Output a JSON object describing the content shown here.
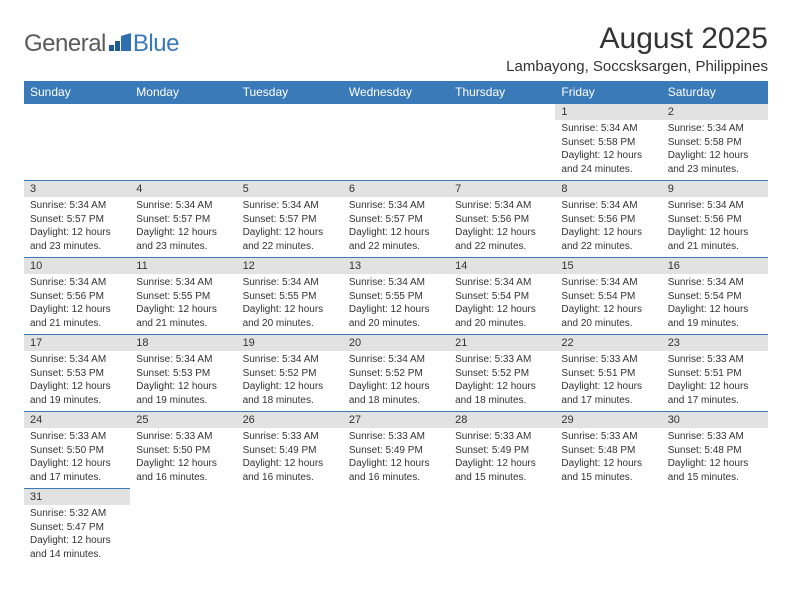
{
  "logo": {
    "general": "General",
    "blue": "Blue"
  },
  "title": "August 2025",
  "location": "Lambayong, Soccsksargen, Philippines",
  "colors": {
    "header_bg": "#3a7ab8",
    "header_text": "#ffffff",
    "daynum_bg": "#e2e2e2",
    "border": "#3a7ab8",
    "text": "#333333",
    "logo_gray": "#5a5a5a",
    "logo_blue": "#3a7ab8"
  },
  "days_of_week": [
    "Sunday",
    "Monday",
    "Tuesday",
    "Wednesday",
    "Thursday",
    "Friday",
    "Saturday"
  ],
  "cells": [
    {
      "n": "",
      "sr": "",
      "ss": "",
      "dl": ""
    },
    {
      "n": "",
      "sr": "",
      "ss": "",
      "dl": ""
    },
    {
      "n": "",
      "sr": "",
      "ss": "",
      "dl": ""
    },
    {
      "n": "",
      "sr": "",
      "ss": "",
      "dl": ""
    },
    {
      "n": "",
      "sr": "",
      "ss": "",
      "dl": ""
    },
    {
      "n": "1",
      "sr": "Sunrise: 5:34 AM",
      "ss": "Sunset: 5:58 PM",
      "dl": "Daylight: 12 hours and 24 minutes."
    },
    {
      "n": "2",
      "sr": "Sunrise: 5:34 AM",
      "ss": "Sunset: 5:58 PM",
      "dl": "Daylight: 12 hours and 23 minutes."
    },
    {
      "n": "3",
      "sr": "Sunrise: 5:34 AM",
      "ss": "Sunset: 5:57 PM",
      "dl": "Daylight: 12 hours and 23 minutes."
    },
    {
      "n": "4",
      "sr": "Sunrise: 5:34 AM",
      "ss": "Sunset: 5:57 PM",
      "dl": "Daylight: 12 hours and 23 minutes."
    },
    {
      "n": "5",
      "sr": "Sunrise: 5:34 AM",
      "ss": "Sunset: 5:57 PM",
      "dl": "Daylight: 12 hours and 22 minutes."
    },
    {
      "n": "6",
      "sr": "Sunrise: 5:34 AM",
      "ss": "Sunset: 5:57 PM",
      "dl": "Daylight: 12 hours and 22 minutes."
    },
    {
      "n": "7",
      "sr": "Sunrise: 5:34 AM",
      "ss": "Sunset: 5:56 PM",
      "dl": "Daylight: 12 hours and 22 minutes."
    },
    {
      "n": "8",
      "sr": "Sunrise: 5:34 AM",
      "ss": "Sunset: 5:56 PM",
      "dl": "Daylight: 12 hours and 22 minutes."
    },
    {
      "n": "9",
      "sr": "Sunrise: 5:34 AM",
      "ss": "Sunset: 5:56 PM",
      "dl": "Daylight: 12 hours and 21 minutes."
    },
    {
      "n": "10",
      "sr": "Sunrise: 5:34 AM",
      "ss": "Sunset: 5:56 PM",
      "dl": "Daylight: 12 hours and 21 minutes."
    },
    {
      "n": "11",
      "sr": "Sunrise: 5:34 AM",
      "ss": "Sunset: 5:55 PM",
      "dl": "Daylight: 12 hours and 21 minutes."
    },
    {
      "n": "12",
      "sr": "Sunrise: 5:34 AM",
      "ss": "Sunset: 5:55 PM",
      "dl": "Daylight: 12 hours and 20 minutes."
    },
    {
      "n": "13",
      "sr": "Sunrise: 5:34 AM",
      "ss": "Sunset: 5:55 PM",
      "dl": "Daylight: 12 hours and 20 minutes."
    },
    {
      "n": "14",
      "sr": "Sunrise: 5:34 AM",
      "ss": "Sunset: 5:54 PM",
      "dl": "Daylight: 12 hours and 20 minutes."
    },
    {
      "n": "15",
      "sr": "Sunrise: 5:34 AM",
      "ss": "Sunset: 5:54 PM",
      "dl": "Daylight: 12 hours and 20 minutes."
    },
    {
      "n": "16",
      "sr": "Sunrise: 5:34 AM",
      "ss": "Sunset: 5:54 PM",
      "dl": "Daylight: 12 hours and 19 minutes."
    },
    {
      "n": "17",
      "sr": "Sunrise: 5:34 AM",
      "ss": "Sunset: 5:53 PM",
      "dl": "Daylight: 12 hours and 19 minutes."
    },
    {
      "n": "18",
      "sr": "Sunrise: 5:34 AM",
      "ss": "Sunset: 5:53 PM",
      "dl": "Daylight: 12 hours and 19 minutes."
    },
    {
      "n": "19",
      "sr": "Sunrise: 5:34 AM",
      "ss": "Sunset: 5:52 PM",
      "dl": "Daylight: 12 hours and 18 minutes."
    },
    {
      "n": "20",
      "sr": "Sunrise: 5:34 AM",
      "ss": "Sunset: 5:52 PM",
      "dl": "Daylight: 12 hours and 18 minutes."
    },
    {
      "n": "21",
      "sr": "Sunrise: 5:33 AM",
      "ss": "Sunset: 5:52 PM",
      "dl": "Daylight: 12 hours and 18 minutes."
    },
    {
      "n": "22",
      "sr": "Sunrise: 5:33 AM",
      "ss": "Sunset: 5:51 PM",
      "dl": "Daylight: 12 hours and 17 minutes."
    },
    {
      "n": "23",
      "sr": "Sunrise: 5:33 AM",
      "ss": "Sunset: 5:51 PM",
      "dl": "Daylight: 12 hours and 17 minutes."
    },
    {
      "n": "24",
      "sr": "Sunrise: 5:33 AM",
      "ss": "Sunset: 5:50 PM",
      "dl": "Daylight: 12 hours and 17 minutes."
    },
    {
      "n": "25",
      "sr": "Sunrise: 5:33 AM",
      "ss": "Sunset: 5:50 PM",
      "dl": "Daylight: 12 hours and 16 minutes."
    },
    {
      "n": "26",
      "sr": "Sunrise: 5:33 AM",
      "ss": "Sunset: 5:49 PM",
      "dl": "Daylight: 12 hours and 16 minutes."
    },
    {
      "n": "27",
      "sr": "Sunrise: 5:33 AM",
      "ss": "Sunset: 5:49 PM",
      "dl": "Daylight: 12 hours and 16 minutes."
    },
    {
      "n": "28",
      "sr": "Sunrise: 5:33 AM",
      "ss": "Sunset: 5:49 PM",
      "dl": "Daylight: 12 hours and 15 minutes."
    },
    {
      "n": "29",
      "sr": "Sunrise: 5:33 AM",
      "ss": "Sunset: 5:48 PM",
      "dl": "Daylight: 12 hours and 15 minutes."
    },
    {
      "n": "30",
      "sr": "Sunrise: 5:33 AM",
      "ss": "Sunset: 5:48 PM",
      "dl": "Daylight: 12 hours and 15 minutes."
    },
    {
      "n": "31",
      "sr": "Sunrise: 5:32 AM",
      "ss": "Sunset: 5:47 PM",
      "dl": "Daylight: 12 hours and 14 minutes."
    },
    {
      "n": "",
      "sr": "",
      "ss": "",
      "dl": ""
    },
    {
      "n": "",
      "sr": "",
      "ss": "",
      "dl": ""
    },
    {
      "n": "",
      "sr": "",
      "ss": "",
      "dl": ""
    },
    {
      "n": "",
      "sr": "",
      "ss": "",
      "dl": ""
    },
    {
      "n": "",
      "sr": "",
      "ss": "",
      "dl": ""
    },
    {
      "n": "",
      "sr": "",
      "ss": "",
      "dl": ""
    }
  ]
}
